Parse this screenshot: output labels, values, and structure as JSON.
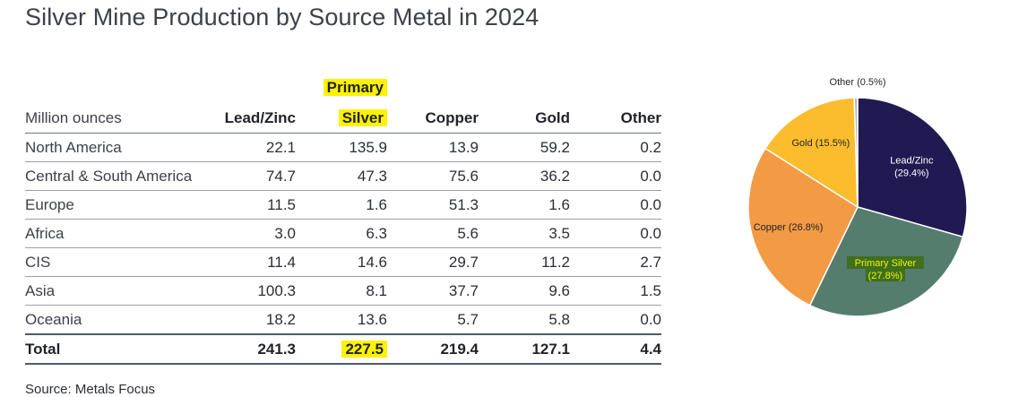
{
  "title": "Silver Mine Production by Source Metal in 2024",
  "table": {
    "units_label": "Million ounces",
    "header_top": [
      "",
      "",
      "Primary",
      "",
      "",
      ""
    ],
    "columns": [
      "Lead/Zinc",
      "Silver",
      "Copper",
      "Gold",
      "Other"
    ],
    "rows": [
      {
        "label": "North America",
        "values": [
          "22.1",
          "135.9",
          "13.9",
          "59.2",
          "0.2"
        ]
      },
      {
        "label": "Central & South America",
        "values": [
          "74.7",
          "47.3",
          "75.6",
          "36.2",
          "0.0"
        ]
      },
      {
        "label": "Europe",
        "values": [
          "11.5",
          "1.6",
          "51.3",
          "1.6",
          "0.0"
        ]
      },
      {
        "label": "Africa",
        "values": [
          "3.0",
          "6.3",
          "5.6",
          "3.5",
          "0.0"
        ]
      },
      {
        "label": "CIS",
        "values": [
          "11.4",
          "14.6",
          "29.7",
          "11.2",
          "2.7"
        ]
      },
      {
        "label": "Asia",
        "values": [
          "100.3",
          "8.1",
          "37.7",
          "9.6",
          "1.5"
        ]
      },
      {
        "label": "Oceania",
        "values": [
          "18.2",
          "13.6",
          "5.7",
          "5.8",
          "0.0"
        ]
      }
    ],
    "total": {
      "label": "Total",
      "values": [
        "241.3",
        "227.5",
        "219.4",
        "127.1",
        "4.4"
      ]
    }
  },
  "source": "Source: Metals Focus",
  "chart_data": {
    "type": "pie",
    "slices": [
      {
        "label": "Lead/Zinc",
        "pct_label": "(29.4%)",
        "value": 29.4,
        "color": "#211a52",
        "text_color": "#ffffff"
      },
      {
        "label": "Primary Silver",
        "pct_label": "(27.8%)",
        "value": 27.8,
        "color": "#547d6e",
        "text_color": "#f3f300",
        "highlight": "#3f6f1f"
      },
      {
        "label": "Copper",
        "pct_label": "(26.8%)",
        "value": 26.8,
        "color": "#f39a45",
        "text_color": "#1f2328"
      },
      {
        "label": "Gold",
        "pct_label": "(15.5%)",
        "value": 15.5,
        "color": "#fbbd2d",
        "text_color": "#1f2328"
      },
      {
        "label": "Other",
        "pct_label": "(0.5%)",
        "value": 0.5,
        "color": "#b9bcc4",
        "text_color": "#1f2328"
      }
    ],
    "colors": {
      "highlight_yellow": "#fff200"
    }
  }
}
